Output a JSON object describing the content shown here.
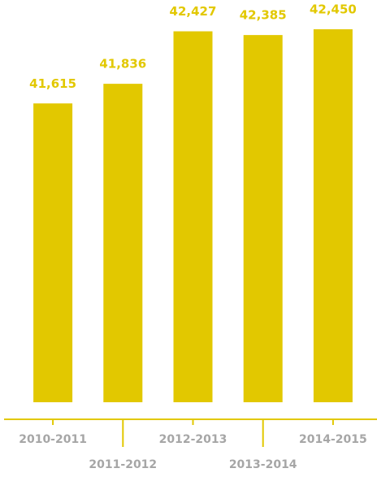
{
  "chart_data": {
    "type": "bar",
    "categories": [
      "2010-2011",
      "2011-2012",
      "2012-2013",
      "2013-2014",
      "2014-2015"
    ],
    "values": [
      41615,
      41836,
      42427,
      42385,
      42450
    ],
    "value_labels": [
      "41,615",
      "41,836",
      "42,427",
      "42,385",
      "42,450"
    ],
    "color": "#e2c800",
    "ylim": [
      38250,
      42700
    ]
  }
}
